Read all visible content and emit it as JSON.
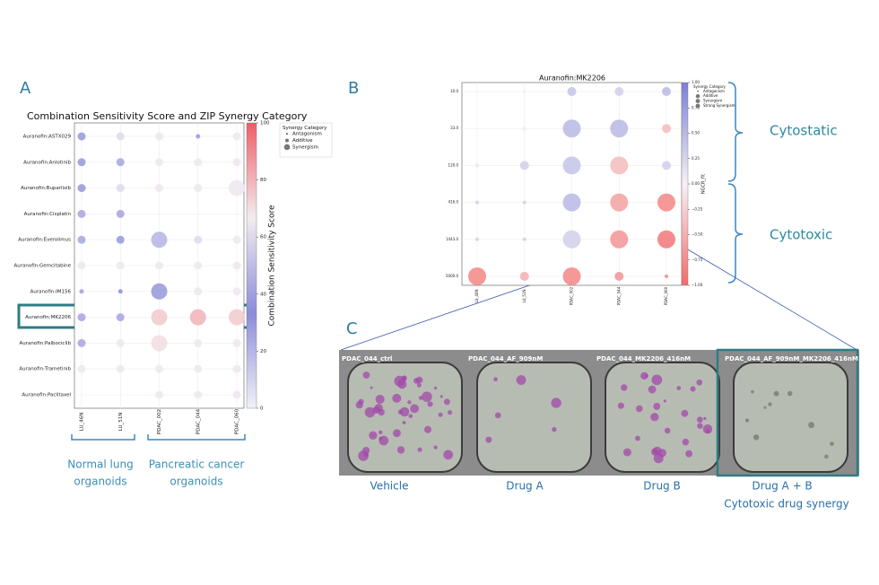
{
  "panel_labels": [
    "A",
    "B",
    "C"
  ],
  "chart_data": [
    {
      "type": "bubble",
      "title": "Combination Sensitivity Score and ZIP Synergy Category",
      "categories": [
        "LU_46N",
        "LU_51N",
        "PDAC_002",
        "PDAC_044",
        "PDAC_060"
      ],
      "y_categories": [
        "Auranofin:ASTX029",
        "Auranofin:Anlotinib",
        "Auranofin:Buparlisib",
        "Auranofin:Cisplatin",
        "Auranofin:Everolimus",
        "Auranofin:Gemcitabine",
        "Auranofin:IM156",
        "Auranofin:MK2206",
        "Auranofin:Palbociclib",
        "Auranofin:Trametinib",
        "Auranofin:Paclitaxel"
      ],
      "values": [
        [
          30,
          60,
          65,
          30,
          65
        ],
        [
          30,
          25,
          65,
          65,
          65
        ],
        [
          30,
          60,
          65,
          65,
          65
        ],
        [
          25,
          25,
          null,
          null,
          null
        ],
        [
          25,
          30,
          20,
          60,
          65
        ],
        [
          65,
          65,
          65,
          65,
          65
        ],
        [
          40,
          35,
          30,
          65,
          65
        ],
        [
          25,
          25,
          75,
          80,
          75
        ],
        [
          25,
          65,
          70,
          65,
          65
        ],
        [
          65,
          65,
          65,
          65,
          65
        ],
        [
          null,
          null,
          65,
          65,
          65
        ]
      ],
      "synergy": [
        [
          "Additive",
          "Additive",
          "Additive",
          "Antagonism",
          "Additive"
        ],
        [
          "Additive",
          "Additive",
          "Additive",
          "Additive",
          "Additive"
        ],
        [
          "Additive",
          "Additive",
          "Additive",
          "Additive",
          "Synergism"
        ],
        [
          "Additive",
          "Additive",
          null,
          null,
          null
        ],
        [
          "Additive",
          "Additive",
          "Synergism",
          "Additive",
          "Additive"
        ],
        [
          "Additive",
          "Additive",
          "Additive",
          "Additive",
          "Additive"
        ],
        [
          "Antagonism",
          "Antagonism",
          "Synergism",
          "Additive",
          "Additive"
        ],
        [
          "Additive",
          "Additive",
          "Synergism",
          "Synergism",
          "Synergism"
        ],
        [
          "Additive",
          "Additive",
          "Synergism",
          "Additive",
          "Additive"
        ],
        [
          "Additive",
          "Additive",
          "Additive",
          "Additive",
          "Additive"
        ],
        [
          null,
          null,
          "Additive",
          "Additive",
          "Additive"
        ]
      ],
      "legend_title": "Synergy Category",
      "legend": [
        "Antagonism",
        "Additive",
        "Synergism"
      ],
      "colorbar_label": "Combination Sensitivity Score",
      "clim": [
        0,
        100
      ],
      "cticks": [
        0,
        20,
        40,
        60,
        80,
        100
      ],
      "colormap": [
        "#f1f1f8",
        "#8c8cd9",
        "#f2ecef",
        "#ee5e68"
      ],
      "grid": true
    },
    {
      "type": "bubble",
      "title": "Auranofin:MK2206",
      "categories": [
        "LU_46N",
        "LU_51N",
        "PDAC_002",
        "PDAC_044",
        "PDAC_060"
      ],
      "y_categories": [
        "10.0",
        "33.0",
        "120.0",
        "416.0",
        "1443.0",
        "5000.0"
      ],
      "values": [
        [
          null,
          0.0,
          0.4,
          0.3,
          0.5
        ],
        [
          null,
          0.05,
          0.5,
          0.5,
          -0.4
        ],
        [
          0.1,
          0.3,
          0.4,
          -0.4,
          0.3
        ],
        [
          0.3,
          0.3,
          0.5,
          -0.6,
          -0.8
        ],
        [
          0.3,
          0.3,
          0.3,
          -0.7,
          -0.9
        ],
        [
          -0.8,
          -0.5,
          -0.8,
          -0.7,
          -0.8
        ]
      ],
      "synergy": [
        [
          null,
          "Antagonism",
          "Additive",
          "Additive",
          "Additive"
        ],
        [
          null,
          "Antagonism",
          "Synergism",
          "Synergism",
          "Additive"
        ],
        [
          "Antagonism",
          "Additive",
          "Synergism",
          "Synergism",
          "Additive"
        ],
        [
          "Antagonism",
          "Antagonism",
          "Synergism",
          "Synergism",
          "Synergism"
        ],
        [
          "Antagonism",
          "Antagonism",
          "Synergism",
          "Synergism",
          "Synergism"
        ],
        [
          "Synergism",
          "Additive",
          "Synergism",
          "Additive",
          "Antagonism"
        ]
      ],
      "legend_title": "Synergy Category",
      "legend": [
        "Antagonism",
        "Additive",
        "Synergism",
        "Strong Synergism"
      ],
      "colorbar_label": "NGCR_fit",
      "clim": [
        -1,
        1
      ],
      "cticks": [
        {
          "value": 1,
          "label": "1.00"
        },
        {
          "value": 0.75,
          "label": "0.75"
        },
        {
          "value": 0.5,
          "label": "0.50"
        },
        {
          "value": 0.25,
          "label": "0.25"
        },
        {
          "value": 0,
          "label": "0.00"
        },
        {
          "value": -0.25,
          "label": "−0.25"
        },
        {
          "value": -0.5,
          "label": "−0.50"
        },
        {
          "value": -0.75,
          "label": "−0.75"
        },
        {
          "value": -1,
          "label": "−1.00"
        }
      ],
      "colormap": [
        "#f26b6b",
        "#f6f1f3",
        "#7b7fd6"
      ],
      "grid": true
    }
  ],
  "annotations": {
    "normal_lung": [
      "Normal lung",
      "organoids"
    ],
    "pancreatic": [
      "Pancreatic cancer",
      "organoids"
    ],
    "cytostatic": "Cytostatic",
    "cytotoxic": "Cytotoxic"
  },
  "images": [
    {
      "title": "PDAC_044_ctrl",
      "caption": "Vehicle"
    },
    {
      "title": "PDAC_044_AF_909nM",
      "caption": "Drug A"
    },
    {
      "title": "PDAC_044_MK2206_416nM",
      "caption": "Drug B"
    },
    {
      "title": "PDAC_044_AF_909nM_MK2206_416nM",
      "caption": "Drug A + B",
      "note": "Cytotoxic drug synergy"
    }
  ]
}
